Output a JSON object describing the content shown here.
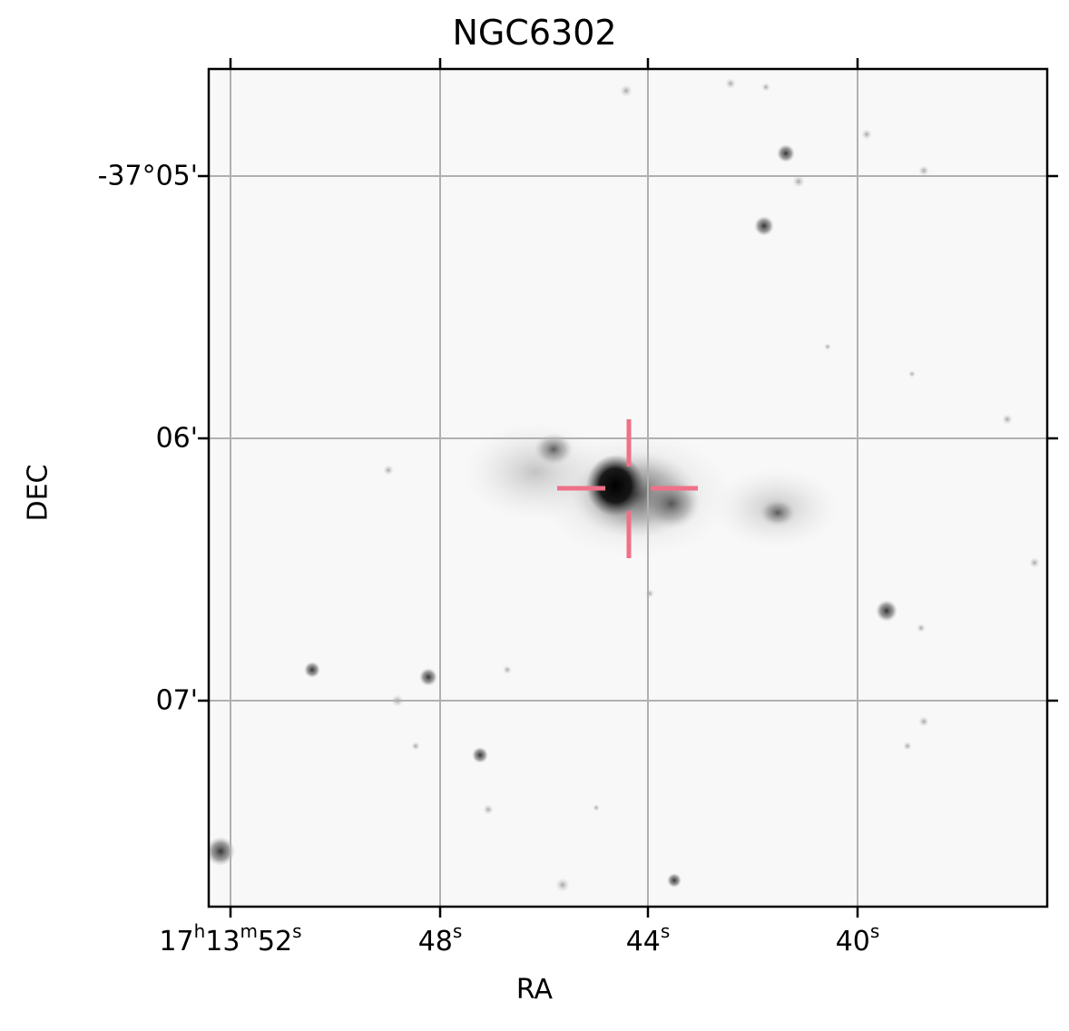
{
  "title": "NGC6302",
  "xlabel": "RA",
  "ylabel": "DEC",
  "x_ticks": [
    {
      "h": "17",
      "m": "13",
      "s": "52"
    },
    {
      "s": "48"
    },
    {
      "s": "44"
    },
    {
      "s": "40"
    }
  ],
  "y_ticks": [
    "-37°05'",
    "06'",
    "07'"
  ],
  "marker_color": "#ef7088",
  "grid_color": "#b0b0b0"
}
